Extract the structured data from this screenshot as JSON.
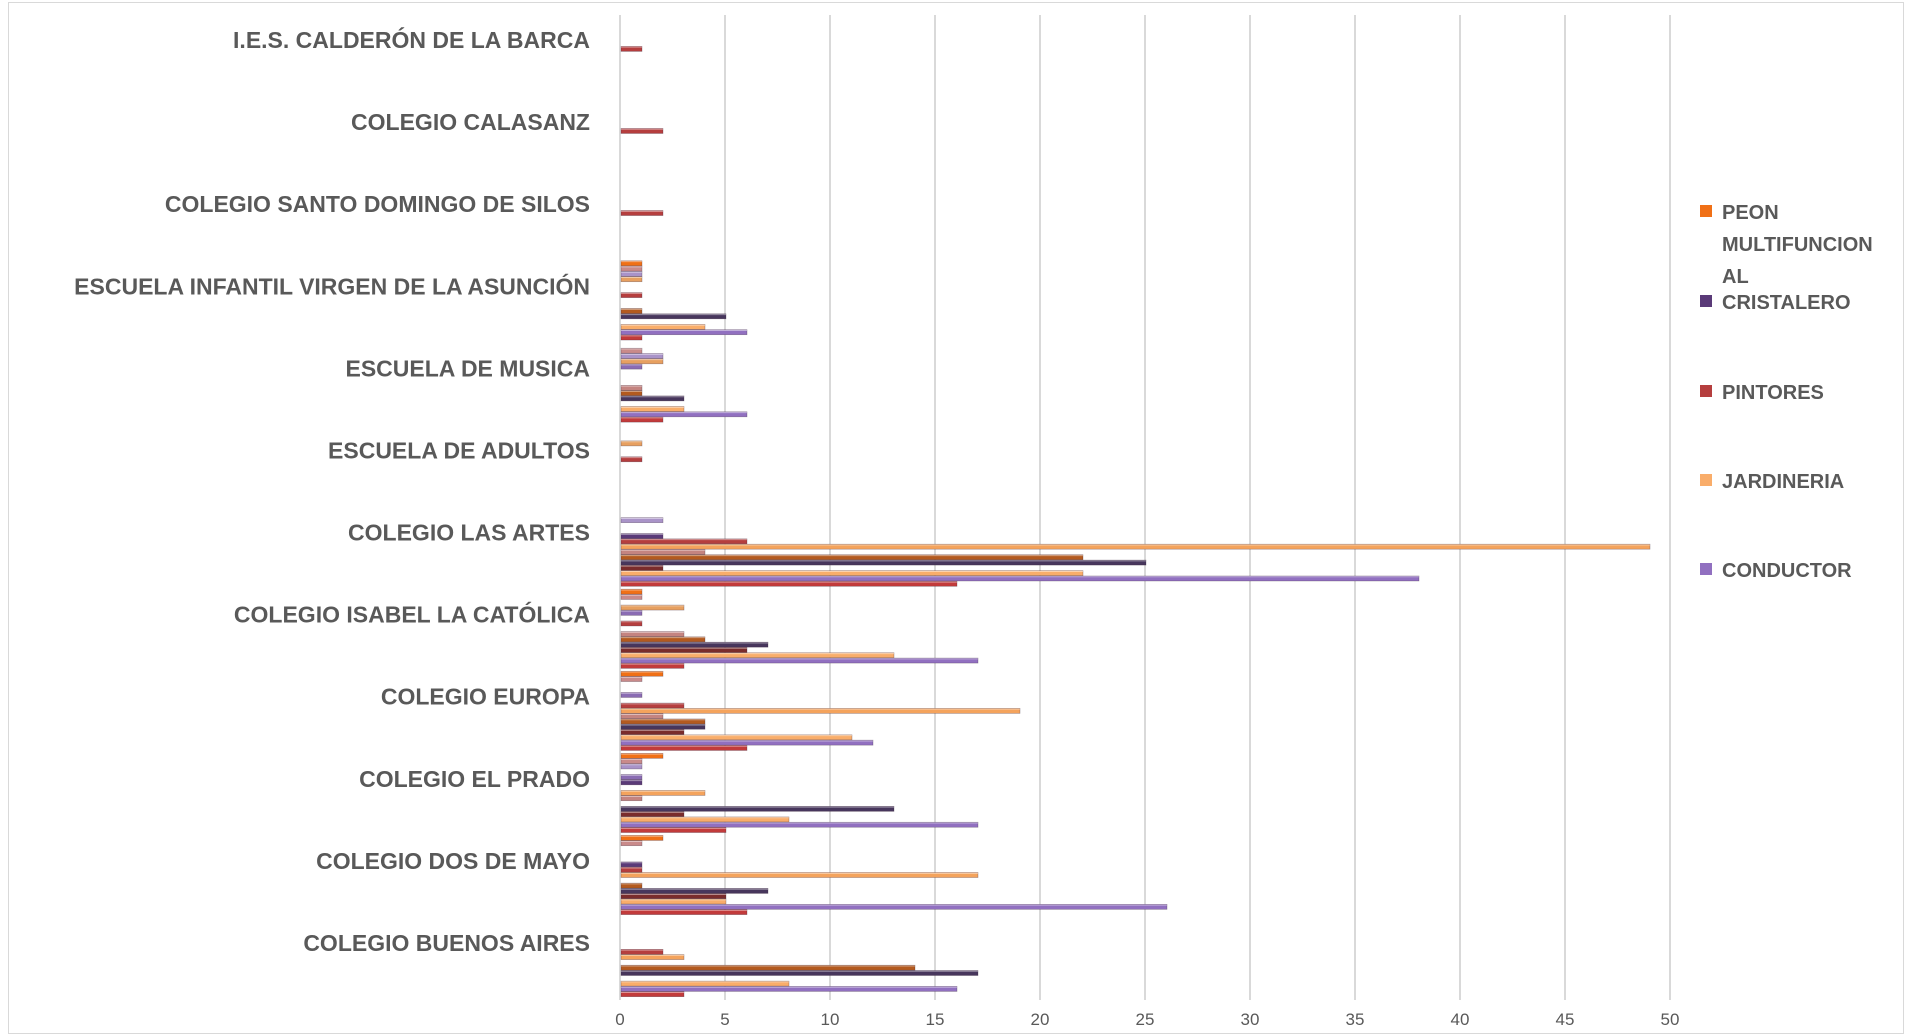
{
  "chart_data": {
    "type": "bar",
    "orientation": "horizontal",
    "categories": [
      "I.E.S. CALDERÓN DE LA BARCA",
      "COLEGIO CALASANZ",
      "COLEGIO SANTO DOMINGO DE SILOS",
      "ESCUELA INFANTIL VIRGEN DE LA ASUNCIÓN",
      "ESCUELA DE MUSICA",
      "ESCUELA DE ADULTOS",
      "COLEGIO LAS ARTES",
      "COLEGIO ISABEL LA CATÓLICA",
      "COLEGIO EUROPA",
      "COLEGIO EL PRADO",
      "COLEGIO DOS DE MAYO",
      "COLEGIO BUENOS AIRES"
    ],
    "xlim": [
      0,
      50
    ],
    "xticks": [
      "0",
      "5",
      "10",
      "15",
      "20",
      "25",
      "30",
      "35",
      "40",
      "45",
      "50"
    ],
    "grid": "vertical",
    "legend_position": "right",
    "series": [
      {
        "name": "PEON MULTIFUNCIONAL",
        "color": "#f07016",
        "values": [
          0,
          0,
          0,
          1,
          0,
          0,
          0,
          1,
          2,
          2,
          2,
          0
        ]
      },
      {
        "name": "",
        "color": "#c98a8a",
        "values": [
          0,
          0,
          0,
          1,
          1,
          0,
          0,
          1,
          1,
          1,
          1,
          0
        ]
      },
      {
        "name": "",
        "color": "#a993c8",
        "values": [
          0,
          0,
          0,
          1,
          2,
          0,
          2,
          0,
          0,
          1,
          0,
          0
        ]
      },
      {
        "name": "",
        "color": "#e7a060",
        "values": [
          0,
          0,
          0,
          1,
          2,
          1,
          0,
          3,
          0,
          0,
          0,
          0
        ]
      },
      {
        "name": "",
        "color": "#8a6cb3",
        "values": [
          0,
          0,
          0,
          0,
          1,
          0,
          0,
          1,
          1,
          1,
          0,
          0
        ]
      },
      {
        "name": "CRISTALERO",
        "color": "#5a3a78",
        "values": [
          0,
          0,
          0,
          0,
          0,
          0,
          2,
          0,
          0,
          1,
          1,
          0
        ]
      },
      {
        "name": "PINTORES",
        "color": "#b53e3e",
        "values": [
          1,
          2,
          2,
          1,
          0,
          1,
          6,
          1,
          3,
          0,
          1,
          2
        ]
      },
      {
        "name": "",
        "color": "#f4a35c",
        "values": [
          0,
          0,
          0,
          0,
          0,
          0,
          49,
          0,
          19,
          4,
          17,
          3
        ]
      },
      {
        "name": "",
        "color": "#c48480",
        "values": [
          0,
          0,
          0,
          0,
          1,
          0,
          4,
          3,
          2,
          1,
          0,
          0
        ]
      },
      {
        "name": "",
        "color": "#b35a1f",
        "values": [
          0,
          0,
          0,
          1,
          1,
          0,
          22,
          4,
          4,
          0,
          1,
          14
        ]
      },
      {
        "name": "",
        "color": "#47365c",
        "values": [
          0,
          0,
          0,
          5,
          3,
          0,
          25,
          7,
          4,
          13,
          7,
          17
        ]
      },
      {
        "name": "",
        "color": "#7a2c2c",
        "values": [
          0,
          0,
          0,
          0,
          0,
          0,
          2,
          6,
          3,
          3,
          5,
          0
        ]
      },
      {
        "name": "JARDINERIA",
        "color": "#f9ad6a",
        "values": [
          0,
          0,
          0,
          4,
          3,
          0,
          22,
          13,
          11,
          8,
          5,
          8
        ]
      },
      {
        "name": "CONDUCTOR",
        "color": "#9170c0",
        "values": [
          0,
          0,
          0,
          6,
          6,
          0,
          38,
          17,
          12,
          17,
          26,
          16
        ]
      },
      {
        "name": "",
        "color": "#c23b3b",
        "values": [
          0,
          0,
          0,
          1,
          2,
          0,
          16,
          3,
          6,
          5,
          6,
          3
        ]
      }
    ],
    "legend": [
      {
        "label": "PEON MULTIFUNCIONAL",
        "color": "#f07016"
      },
      {
        "label": "CRISTALERO",
        "color": "#5a3a78"
      },
      {
        "label": "PINTORES",
        "color": "#b53e3e"
      },
      {
        "label": "JARDINERIA",
        "color": "#f9ad6a"
      },
      {
        "label": "CONDUCTOR",
        "color": "#9170c0"
      }
    ]
  }
}
